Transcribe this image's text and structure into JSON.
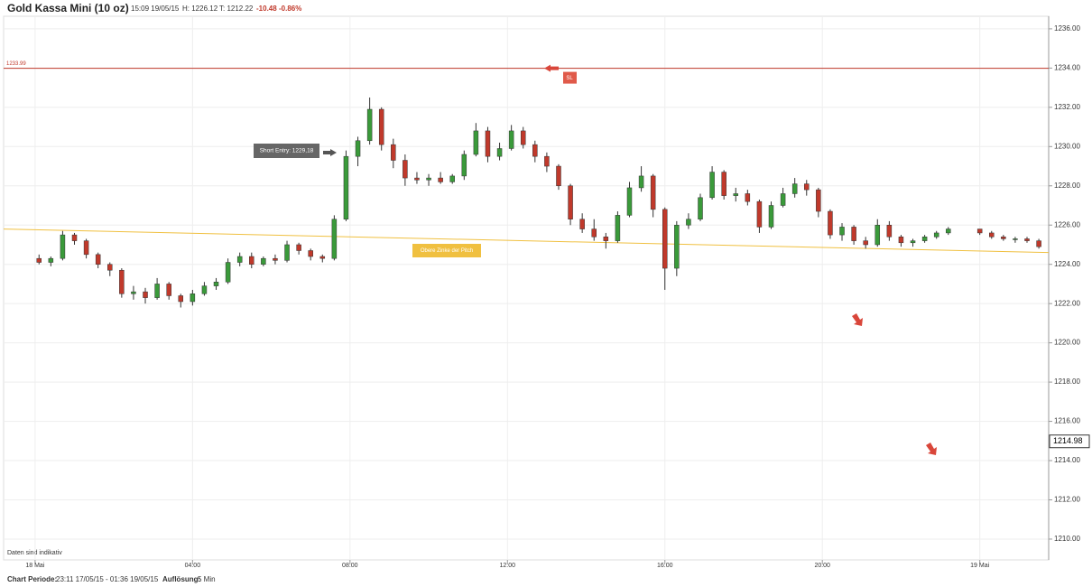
{
  "chart_data": {
    "type": "candlestick",
    "title": "Gold Kassa Mini (10 oz)",
    "header": {
      "time": "15:09 19/05/15",
      "high": "H: 1226.12",
      "low": "T: 1212.22",
      "change": "-10.48",
      "change_pct": "-0.86%"
    },
    "note": "Daten sind indikativ",
    "footer": {
      "period_label": "Chart Periode:",
      "period": "23:11 17/05/15 - 01:36 19/05/15",
      "resolution_label": "Auflösung:",
      "resolution": "5 Min"
    },
    "xlim": [
      -0.8,
      25.75
    ],
    "xticks": [
      {
        "value": 0,
        "label": "18 Mai"
      },
      {
        "value": 4,
        "label": "04:00"
      },
      {
        "value": 8,
        "label": "08:00"
      },
      {
        "value": 12,
        "label": "12:00"
      },
      {
        "value": 16,
        "label": "16:00"
      },
      {
        "value": 20,
        "label": "20:00"
      },
      {
        "value": 24,
        "label": "19 Mai"
      }
    ],
    "ylim": [
      1208.94,
      1236.64
    ],
    "yticks": [
      {
        "value": 1210,
        "label": "1210.00"
      },
      {
        "value": 1212,
        "label": "1212.00"
      },
      {
        "value": 1214,
        "label": "1214.00"
      },
      {
        "value": 1216,
        "label": "1216.00"
      },
      {
        "value": 1218,
        "label": "1218.00"
      },
      {
        "value": 1220,
        "label": "1220.00"
      },
      {
        "value": 1222,
        "label": "1222.00"
      },
      {
        "value": 1224,
        "label": "1224.00"
      },
      {
        "value": 1226,
        "label": "1226.00"
      },
      {
        "value": 1228,
        "label": "1228.00"
      },
      {
        "value": 1230,
        "label": "1230.00"
      },
      {
        "value": 1232,
        "label": "1232.00"
      },
      {
        "value": 1234,
        "label": "1234.00"
      },
      {
        "value": 1236,
        "label": "1236.00"
      }
    ],
    "grid": true,
    "up_color": "#3a9a3a",
    "down_color": "#c0392b",
    "last_price": 1214.98,
    "stop_loss": {
      "value": 1233.99,
      "label": "SL",
      "color": "#c0392b"
    },
    "short_entry": {
      "label": "Short Entry: 1229,18"
    },
    "pitch_line": {
      "label": "Obere Zinke der Pitch",
      "values": [
        1225.8,
        1224.6
      ],
      "color": "#f0c040"
    },
    "candles": [
      {
        "x": 0.1,
        "open": 1224.3,
        "high": 1224.5,
        "low": 1224.0,
        "close": 1224.1
      },
      {
        "x": 0.4,
        "open": 1224.1,
        "high": 1224.4,
        "low": 1223.9,
        "close": 1224.3
      },
      {
        "x": 0.7,
        "open": 1224.3,
        "high": 1225.7,
        "low": 1224.2,
        "close": 1225.5
      },
      {
        "x": 1.0,
        "open": 1225.5,
        "high": 1225.6,
        "low": 1225.0,
        "close": 1225.2
      },
      {
        "x": 1.3,
        "open": 1225.2,
        "high": 1225.3,
        "low": 1224.3,
        "close": 1224.5
      },
      {
        "x": 1.6,
        "open": 1224.5,
        "high": 1224.6,
        "low": 1223.8,
        "close": 1224.0
      },
      {
        "x": 1.9,
        "open": 1224.0,
        "high": 1224.1,
        "low": 1223.4,
        "close": 1223.7
      },
      {
        "x": 2.2,
        "open": 1223.7,
        "high": 1223.8,
        "low": 1222.3,
        "close": 1222.5
      },
      {
        "x": 2.5,
        "open": 1222.5,
        "high": 1222.9,
        "low": 1222.2,
        "close": 1222.6
      },
      {
        "x": 2.8,
        "open": 1222.6,
        "high": 1222.8,
        "low": 1222.0,
        "close": 1222.3
      },
      {
        "x": 3.1,
        "open": 1222.3,
        "high": 1223.3,
        "low": 1222.2,
        "close": 1223.0
      },
      {
        "x": 3.4,
        "open": 1223.0,
        "high": 1223.1,
        "low": 1222.2,
        "close": 1222.4
      },
      {
        "x": 3.7,
        "open": 1222.4,
        "high": 1222.5,
        "low": 1221.8,
        "close": 1222.1
      },
      {
        "x": 4.0,
        "open": 1222.1,
        "high": 1222.7,
        "low": 1221.9,
        "close": 1222.5
      },
      {
        "x": 4.3,
        "open": 1222.5,
        "high": 1223.1,
        "low": 1222.4,
        "close": 1222.9
      },
      {
        "x": 4.6,
        "open": 1222.9,
        "high": 1223.3,
        "low": 1222.7,
        "close": 1223.1
      },
      {
        "x": 4.9,
        "open": 1223.1,
        "high": 1224.3,
        "low": 1223.0,
        "close": 1224.1
      },
      {
        "x": 5.2,
        "open": 1224.1,
        "high": 1224.6,
        "low": 1223.9,
        "close": 1224.4
      },
      {
        "x": 5.5,
        "open": 1224.4,
        "high": 1224.6,
        "low": 1223.8,
        "close": 1224.0
      },
      {
        "x": 5.8,
        "open": 1224.0,
        "high": 1224.4,
        "low": 1223.9,
        "close": 1224.3
      },
      {
        "x": 6.1,
        "open": 1224.3,
        "high": 1224.5,
        "low": 1224.0,
        "close": 1224.2
      },
      {
        "x": 6.4,
        "open": 1224.2,
        "high": 1225.2,
        "low": 1224.1,
        "close": 1225.0
      },
      {
        "x": 6.7,
        "open": 1225.0,
        "high": 1225.1,
        "low": 1224.5,
        "close": 1224.7
      },
      {
        "x": 7.0,
        "open": 1224.7,
        "high": 1224.8,
        "low": 1224.2,
        "close": 1224.4
      },
      {
        "x": 7.3,
        "open": 1224.4,
        "high": 1224.5,
        "low": 1224.1,
        "close": 1224.3
      },
      {
        "x": 7.6,
        "open": 1224.3,
        "high": 1226.5,
        "low": 1224.2,
        "close": 1226.3
      },
      {
        "x": 7.9,
        "open": 1226.3,
        "high": 1229.8,
        "low": 1226.2,
        "close": 1229.5
      },
      {
        "x": 8.2,
        "open": 1229.5,
        "high": 1230.5,
        "low": 1229.0,
        "close": 1230.3
      },
      {
        "x": 8.5,
        "open": 1230.3,
        "high": 1232.5,
        "low": 1230.1,
        "close": 1231.9
      },
      {
        "x": 8.8,
        "open": 1231.9,
        "high": 1232.0,
        "low": 1229.8,
        "close": 1230.1
      },
      {
        "x": 9.1,
        "open": 1230.1,
        "high": 1230.4,
        "low": 1228.9,
        "close": 1229.3
      },
      {
        "x": 9.4,
        "open": 1229.3,
        "high": 1229.6,
        "low": 1228.0,
        "close": 1228.4
      },
      {
        "x": 9.7,
        "open": 1228.4,
        "high": 1228.7,
        "low": 1228.1,
        "close": 1228.3
      },
      {
        "x": 10.0,
        "open": 1228.3,
        "high": 1228.6,
        "low": 1228.0,
        "close": 1228.4
      },
      {
        "x": 10.3,
        "open": 1228.4,
        "high": 1228.7,
        "low": 1228.1,
        "close": 1228.2
      },
      {
        "x": 10.6,
        "open": 1228.2,
        "high": 1228.6,
        "low": 1228.1,
        "close": 1228.5
      },
      {
        "x": 10.9,
        "open": 1228.5,
        "high": 1229.8,
        "low": 1228.3,
        "close": 1229.6
      },
      {
        "x": 11.2,
        "open": 1229.6,
        "high": 1231.2,
        "low": 1229.5,
        "close": 1230.8
      },
      {
        "x": 11.5,
        "open": 1230.8,
        "high": 1231.0,
        "low": 1229.2,
        "close": 1229.5
      },
      {
        "x": 11.8,
        "open": 1229.5,
        "high": 1230.2,
        "low": 1229.3,
        "close": 1229.9
      },
      {
        "x": 12.1,
        "open": 1229.9,
        "high": 1231.1,
        "low": 1229.8,
        "close": 1230.8
      },
      {
        "x": 12.4,
        "open": 1230.8,
        "high": 1231.0,
        "low": 1229.9,
        "close": 1230.1
      },
      {
        "x": 12.7,
        "open": 1230.1,
        "high": 1230.3,
        "low": 1229.2,
        "close": 1229.5
      },
      {
        "x": 13.0,
        "open": 1229.5,
        "high": 1229.7,
        "low": 1228.7,
        "close": 1229.0
      },
      {
        "x": 13.3,
        "open": 1229.0,
        "high": 1229.1,
        "low": 1227.8,
        "close": 1228.0
      },
      {
        "x": 13.6,
        "open": 1228.0,
        "high": 1228.1,
        "low": 1226.0,
        "close": 1226.3
      },
      {
        "x": 13.9,
        "open": 1226.3,
        "high": 1226.6,
        "low": 1225.6,
        "close": 1225.8
      },
      {
        "x": 14.2,
        "open": 1225.8,
        "high": 1226.3,
        "low": 1225.2,
        "close": 1225.4
      },
      {
        "x": 14.5,
        "open": 1225.4,
        "high": 1225.6,
        "low": 1224.8,
        "close": 1225.2
      },
      {
        "x": 14.8,
        "open": 1225.2,
        "high": 1226.7,
        "low": 1225.1,
        "close": 1226.5
      },
      {
        "x": 15.1,
        "open": 1226.5,
        "high": 1228.2,
        "low": 1226.4,
        "close": 1227.9
      },
      {
        "x": 15.4,
        "open": 1227.9,
        "high": 1229.0,
        "low": 1227.7,
        "close": 1228.5
      },
      {
        "x": 15.7,
        "open": 1228.5,
        "high": 1228.6,
        "low": 1226.4,
        "close": 1226.8
      },
      {
        "x": 16.0,
        "open": 1226.8,
        "high": 1226.9,
        "low": 1222.7,
        "close": 1223.8
      },
      {
        "x": 16.3,
        "open": 1223.8,
        "high": 1226.2,
        "low": 1223.4,
        "close": 1226.0
      },
      {
        "x": 16.6,
        "open": 1226.0,
        "high": 1226.6,
        "low": 1225.8,
        "close": 1226.3
      },
      {
        "x": 16.9,
        "open": 1226.3,
        "high": 1227.6,
        "low": 1226.2,
        "close": 1227.4
      },
      {
        "x": 17.2,
        "open": 1227.4,
        "high": 1229.0,
        "low": 1227.3,
        "close": 1228.7
      },
      {
        "x": 17.5,
        "open": 1228.7,
        "high": 1228.8,
        "low": 1227.3,
        "close": 1227.5
      },
      {
        "x": 17.8,
        "open": 1227.5,
        "high": 1227.9,
        "low": 1227.2,
        "close": 1227.6
      },
      {
        "x": 18.1,
        "open": 1227.6,
        "high": 1227.8,
        "low": 1227.0,
        "close": 1227.2
      },
      {
        "x": 18.4,
        "open": 1227.2,
        "high": 1227.3,
        "low": 1225.6,
        "close": 1225.9
      },
      {
        "x": 18.7,
        "open": 1225.9,
        "high": 1227.2,
        "low": 1225.8,
        "close": 1227.0
      },
      {
        "x": 19.0,
        "open": 1227.0,
        "high": 1227.9,
        "low": 1226.9,
        "close": 1227.6
      },
      {
        "x": 19.3,
        "open": 1227.6,
        "high": 1228.4,
        "low": 1227.4,
        "close": 1228.1
      },
      {
        "x": 19.6,
        "open": 1228.1,
        "high": 1228.3,
        "low": 1227.5,
        "close": 1227.8
      },
      {
        "x": 19.9,
        "open": 1227.8,
        "high": 1227.9,
        "low": 1226.4,
        "close": 1226.7
      },
      {
        "x": 20.2,
        "open": 1226.7,
        "high": 1226.8,
        "low": 1225.3,
        "close": 1225.5
      },
      {
        "x": 20.5,
        "open": 1225.5,
        "high": 1226.1,
        "low": 1225.2,
        "close": 1225.9
      },
      {
        "x": 20.8,
        "open": 1225.9,
        "high": 1226.0,
        "low": 1225.0,
        "close": 1225.2
      },
      {
        "x": 21.1,
        "open": 1225.2,
        "high": 1225.4,
        "low": 1224.8,
        "close": 1225.0
      },
      {
        "x": 21.4,
        "open": 1225.0,
        "high": 1226.3,
        "low": 1224.9,
        "close": 1226.0
      },
      {
        "x": 21.7,
        "open": 1226.0,
        "high": 1226.2,
        "low": 1225.2,
        "close": 1225.4
      },
      {
        "x": 22.0,
        "open": 1225.4,
        "high": 1225.5,
        "low": 1224.9,
        "close": 1225.1
      },
      {
        "x": 22.3,
        "open": 1225.1,
        "high": 1225.3,
        "low": 1224.9,
        "close": 1225.2
      },
      {
        "x": 22.6,
        "open": 1225.2,
        "high": 1225.5,
        "low": 1225.1,
        "close": 1225.4
      },
      {
        "x": 22.9,
        "open": 1225.4,
        "high": 1225.7,
        "low": 1225.3,
        "close": 1225.6
      },
      {
        "x": 23.2,
        "open": 1225.6,
        "high": 1225.9,
        "low": 1225.5,
        "close": 1225.8
      },
      {
        "x": 24.0,
        "open": 1225.8,
        "high": 1225.8,
        "low": 1225.5,
        "close": 1225.6
      },
      {
        "x": 24.3,
        "open": 1225.6,
        "high": 1225.7,
        "low": 1225.3,
        "close": 1225.4
      },
      {
        "x": 24.6,
        "open": 1225.4,
        "high": 1225.5,
        "low": 1225.2,
        "close": 1225.3
      },
      {
        "x": 24.9,
        "open": 1225.3,
        "high": 1225.4,
        "low": 1225.1,
        "close": 1225.3
      },
      {
        "x": 25.2,
        "open": 1225.3,
        "high": 1225.4,
        "low": 1225.1,
        "close": 1225.2
      },
      {
        "x": 25.5,
        "open": 1225.2,
        "high": 1225.3,
        "low": 1224.8,
        "close": 1224.9
      }
    ]
  }
}
